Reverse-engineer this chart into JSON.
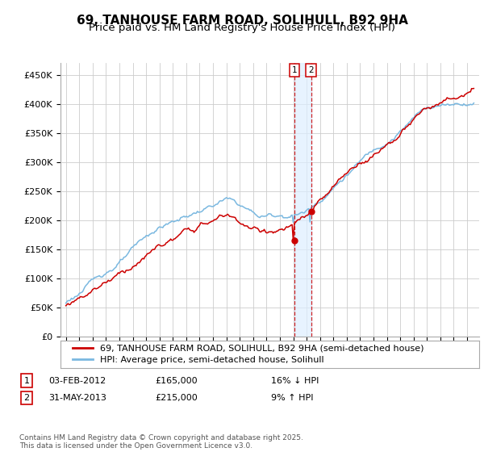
{
  "title": "69, TANHOUSE FARM ROAD, SOLIHULL, B92 9HA",
  "subtitle": "Price paid vs. HM Land Registry's House Price Index (HPI)",
  "ylim": [
    0,
    470000
  ],
  "yticks": [
    0,
    50000,
    100000,
    150000,
    200000,
    250000,
    300000,
    350000,
    400000,
    450000
  ],
  "ytick_labels": [
    "£0",
    "£50K",
    "£100K",
    "£150K",
    "£200K",
    "£250K",
    "£300K",
    "£350K",
    "£400K",
    "£450K"
  ],
  "hpi_color": "#7ab8e0",
  "price_color": "#cc0000",
  "annotation_line_color": "#cc0000",
  "annotation_band_color": "#ddeeff",
  "legend_label_red": "69, TANHOUSE FARM ROAD, SOLIHULL, B92 9HA (semi-detached house)",
  "legend_label_blue": "HPI: Average price, semi-detached house, Solihull",
  "transaction1_date": "03-FEB-2012",
  "transaction1_price": 165000,
  "transaction1_note": "16% ↓ HPI",
  "transaction2_date": "31-MAY-2013",
  "transaction2_price": 215000,
  "transaction2_note": "9% ↑ HPI",
  "footer": "Contains HM Land Registry data © Crown copyright and database right 2025.\nThis data is licensed under the Open Government Licence v3.0.",
  "background_color": "#ffffff",
  "grid_color": "#cccccc",
  "title_fontsize": 11,
  "subtitle_fontsize": 9.5,
  "tick_fontsize": 8,
  "legend_fontsize": 8,
  "table_fontsize": 8,
  "footer_fontsize": 6.5
}
